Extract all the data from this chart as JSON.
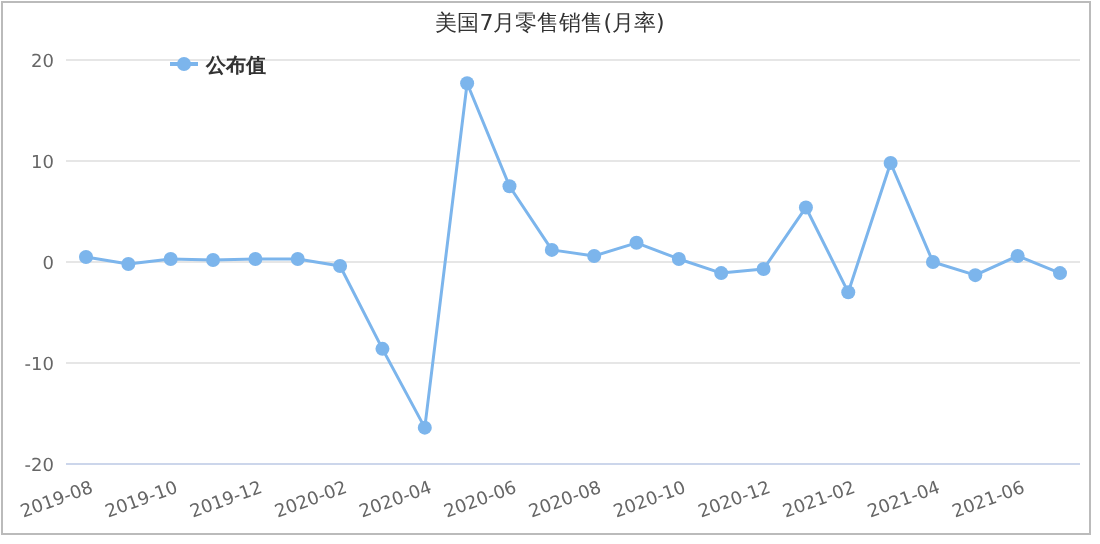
{
  "chart_data": {
    "type": "line",
    "title": "美国7月零售销售(月率)",
    "categories": [
      "2019-08",
      null,
      "2019-10",
      null,
      "2019-12",
      null,
      "2020-02",
      null,
      "2020-04",
      null,
      "2020-06",
      null,
      "2020-08",
      null,
      "2020-10",
      null,
      "2020-12",
      null,
      "2021-02",
      null,
      "2021-04",
      null,
      "2021-06",
      null
    ],
    "series": [
      {
        "name": "公布值",
        "color": "#7cb5ec",
        "values": [
          0.5,
          -0.2,
          0.3,
          0.2,
          0.3,
          0.3,
          -0.4,
          -8.6,
          -16.4,
          17.7,
          7.5,
          1.2,
          0.6,
          1.9,
          0.3,
          -1.1,
          -0.7,
          5.4,
          -3.0,
          9.8,
          0.0,
          -1.3,
          0.6,
          -1.1
        ]
      }
    ],
    "ylim": [
      -20,
      20
    ],
    "yticks": [
      -20,
      -10,
      0,
      10,
      20
    ],
    "grid": "y",
    "legend": "top left",
    "marker": "circle",
    "line_style": "solid"
  }
}
